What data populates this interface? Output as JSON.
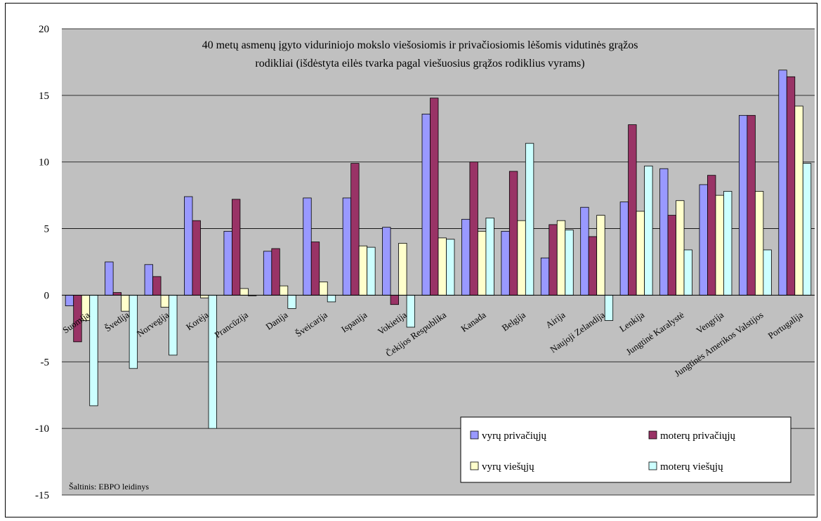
{
  "chart_data": {
    "type": "bar",
    "title": "40 metų asmenų įgyto viduriniojo mokslo viešosiomis ir privačiosiomis lėšomis vidutinės grąžos rodikliai (išdėstyta eilės tvarka pagal viešuosius grąžos rodiklius vyrams)",
    "title_lines": [
      "40 metų asmenų įgyto viduriniojo mokslo viešosiomis ir privačiosiomis lėšomis vidutinės grąžos",
      "rodikliai (išdėstyta eilės tvarka pagal viešuosius grąžos rodiklius vyrams)"
    ],
    "xlabel": "",
    "ylabel": "",
    "ylim": [
      -15,
      20
    ],
    "yticks": [
      -15,
      -10,
      -5,
      0,
      5,
      10,
      15,
      20
    ],
    "grid": true,
    "legend_position": "bottom-right",
    "source_note": "Šaltinis: EBPO leidinys",
    "categories": [
      "Suomija",
      "Švedija",
      "Norvegija",
      "Korėja",
      "Prancūzija",
      "Danija",
      "Šveicarija",
      "Ispanija",
      "Vokietija",
      "Čekijos Respublika",
      "Kanada",
      "Belgija",
      "Airija",
      "Naujoji Zelandija",
      "Lenkija",
      "Jungtinė Karalystė",
      "Vengrija",
      "Jungtinės Amerikos Valstijos",
      "Portugalija"
    ],
    "series": [
      {
        "name": "vyrų privačiųjų",
        "color": "#9999ff",
        "values": [
          -0.8,
          2.5,
          2.3,
          7.4,
          4.8,
          3.3,
          7.3,
          7.3,
          5.1,
          13.6,
          5.7,
          4.8,
          2.8,
          6.6,
          7.0,
          9.5,
          8.3,
          13.5,
          16.9
        ]
      },
      {
        "name": "moterų privačiųjų",
        "color": "#993366",
        "values": [
          -3.5,
          0.2,
          1.4,
          5.6,
          7.2,
          3.5,
          4.0,
          9.9,
          -0.7,
          14.8,
          10.0,
          9.3,
          5.3,
          4.4,
          12.8,
          6.0,
          9.0,
          13.5,
          16.4
        ]
      },
      {
        "name": "vyrų viešųjų",
        "color": "#ffffcc",
        "values": [
          -1.9,
          -1.2,
          -0.9,
          -0.2,
          0.5,
          0.7,
          1.0,
          3.7,
          3.9,
          4.3,
          4.8,
          5.6,
          5.6,
          6.0,
          6.3,
          7.1,
          7.5,
          7.8,
          14.2
        ]
      },
      {
        "name": "moterų viešųjų",
        "color": "#ccffff",
        "values": [
          -8.3,
          -5.5,
          -4.5,
          -10.0,
          0.0,
          -1.0,
          -0.5,
          3.6,
          -2.4,
          4.2,
          5.8,
          11.4,
          4.9,
          -1.9,
          9.7,
          3.4,
          7.8,
          3.4,
          9.9
        ]
      }
    ]
  }
}
